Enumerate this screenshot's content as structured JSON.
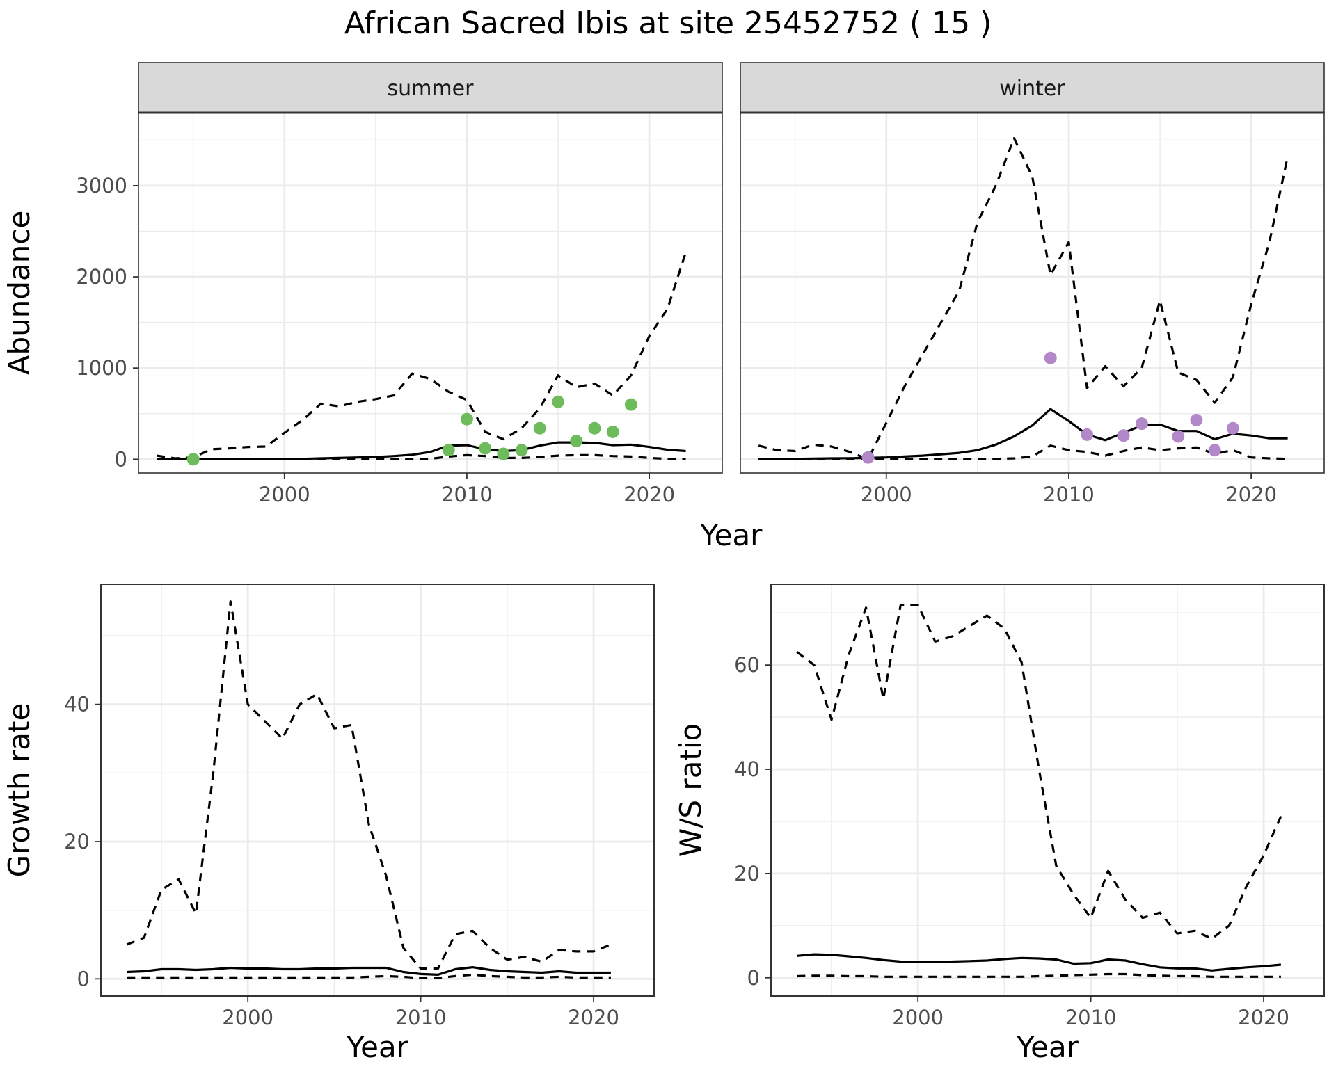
{
  "title": "African Sacred Ibis at site 25452752 ( 15 )",
  "colors": {
    "summer_points": "#6dbb5a",
    "winter_points": "#b388c8",
    "line": "#000000",
    "grid": "#ebebeb",
    "strip_fill": "#d9d9d9",
    "strip_border": "#333333"
  },
  "chart_data": [
    {
      "type": "line",
      "panel": "summer",
      "strip_label": "summer",
      "ylabel": "Abundance",
      "xlabel": "Year",
      "xlim": [
        1992,
        2024
      ],
      "ylim": [
        -150,
        3800
      ],
      "xticks": [
        2000,
        2010,
        2020
      ],
      "yticks": [
        0,
        1000,
        2000,
        3000
      ],
      "series": [
        {
          "name": "mean",
          "style": "solid",
          "x": [
            1993,
            1994,
            1995,
            1996,
            1997,
            1998,
            1999,
            2000,
            2001,
            2002,
            2003,
            2004,
            2005,
            2006,
            2007,
            2008,
            2009,
            2010,
            2011,
            2012,
            2013,
            2014,
            2015,
            2016,
            2017,
            2018,
            2019,
            2020,
            2021,
            2022
          ],
          "values": [
            0,
            0,
            0,
            0,
            0,
            0,
            0,
            0,
            5,
            10,
            15,
            20,
            25,
            35,
            50,
            80,
            150,
            155,
            110,
            90,
            100,
            150,
            185,
            185,
            180,
            155,
            160,
            135,
            105,
            90
          ]
        },
        {
          "name": "upper",
          "style": "dashed",
          "x": [
            1993,
            1994,
            1995,
            1996,
            1997,
            1998,
            1999,
            2000,
            2001,
            2002,
            2003,
            2004,
            2005,
            2006,
            2007,
            2008,
            2009,
            2010,
            2011,
            2012,
            2013,
            2014,
            2015,
            2016,
            2017,
            2018,
            2019,
            2020,
            2021,
            2022
          ],
          "values": [
            40,
            10,
            20,
            110,
            120,
            135,
            140,
            290,
            430,
            610,
            580,
            630,
            660,
            700,
            940,
            880,
            740,
            650,
            300,
            220,
            340,
            560,
            920,
            790,
            830,
            700,
            920,
            1350,
            1650,
            2270
          ]
        },
        {
          "name": "lower",
          "style": "dashed",
          "x": [
            1993,
            1994,
            1995,
            1996,
            1997,
            1998,
            1999,
            2000,
            2001,
            2002,
            2003,
            2004,
            2005,
            2006,
            2007,
            2008,
            2009,
            2010,
            2011,
            2012,
            2013,
            2014,
            2015,
            2016,
            2017,
            2018,
            2019,
            2020,
            2021,
            2022
          ],
          "values": [
            0,
            0,
            0,
            0,
            0,
            0,
            0,
            0,
            0,
            0,
            0,
            0,
            0,
            0,
            0,
            5,
            30,
            45,
            35,
            15,
            15,
            25,
            40,
            45,
            45,
            35,
            30,
            15,
            5,
            5
          ]
        },
        {
          "name": "observed",
          "style": "points",
          "x": [
            1995,
            2009,
            2010,
            2011,
            2012,
            2013,
            2014,
            2015,
            2016,
            2017,
            2018,
            2019
          ],
          "values": [
            0,
            100,
            440,
            120,
            60,
            100,
            340,
            630,
            200,
            340,
            300,
            600
          ]
        }
      ]
    },
    {
      "type": "line",
      "panel": "winter",
      "strip_label": "winter",
      "ylabel": "Abundance",
      "xlabel": "Year",
      "xlim": [
        1992,
        2024
      ],
      "ylim": [
        -150,
        3800
      ],
      "xticks": [
        2000,
        2010,
        2020
      ],
      "yticks": [
        0,
        1000,
        2000,
        3000
      ],
      "series": [
        {
          "name": "mean",
          "style": "solid",
          "x": [
            1993,
            1994,
            1995,
            1996,
            1997,
            1998,
            1999,
            2000,
            2001,
            2002,
            2003,
            2004,
            2005,
            2006,
            2007,
            2008,
            2009,
            2010,
            2011,
            2012,
            2013,
            2014,
            2015,
            2016,
            2017,
            2018,
            2019,
            2020,
            2021,
            2022
          ],
          "values": [
            5,
            5,
            5,
            8,
            10,
            12,
            15,
            20,
            30,
            40,
            55,
            70,
            100,
            160,
            250,
            370,
            550,
            420,
            270,
            210,
            290,
            370,
            380,
            310,
            310,
            220,
            280,
            260,
            230,
            230
          ]
        },
        {
          "name": "upper",
          "style": "dashed",
          "x": [
            1993,
            1994,
            1995,
            1996,
            1997,
            1998,
            1999,
            2000,
            2001,
            2002,
            2003,
            2004,
            2005,
            2006,
            2007,
            2008,
            2009,
            2010,
            2011,
            2012,
            2013,
            2014,
            2015,
            2016,
            2017,
            2018,
            2019,
            2020,
            2021,
            2022
          ],
          "values": [
            150,
            100,
            90,
            160,
            140,
            80,
            0,
            400,
            800,
            1150,
            1500,
            1850,
            2600,
            3000,
            3520,
            3100,
            2020,
            2380,
            780,
            1020,
            800,
            1000,
            1740,
            950,
            870,
            620,
            900,
            1700,
            2380,
            3320
          ]
        },
        {
          "name": "lower",
          "style": "dashed",
          "x": [
            1993,
            1994,
            1995,
            1996,
            1997,
            1998,
            1999,
            2000,
            2001,
            2002,
            2003,
            2004,
            2005,
            2006,
            2007,
            2008,
            2009,
            2010,
            2011,
            2012,
            2013,
            2014,
            2015,
            2016,
            2017,
            2018,
            2019,
            2020,
            2021,
            2022
          ],
          "values": [
            0,
            0,
            0,
            0,
            0,
            0,
            0,
            0,
            0,
            0,
            0,
            0,
            0,
            5,
            10,
            30,
            150,
            100,
            80,
            40,
            90,
            130,
            100,
            120,
            130,
            60,
            100,
            20,
            10,
            5
          ]
        },
        {
          "name": "observed",
          "style": "points",
          "x": [
            1999,
            2009,
            2011,
            2013,
            2014,
            2016,
            2017,
            2018,
            2019
          ],
          "values": [
            20,
            1110,
            270,
            260,
            390,
            250,
            430,
            100,
            340
          ]
        }
      ]
    },
    {
      "type": "line",
      "panel": "growth",
      "ylabel": "Growth rate",
      "xlabel": "Year",
      "xlim": [
        1991.5,
        2023.5
      ],
      "ylim": [
        -2.5,
        57.5
      ],
      "xticks": [
        2000,
        2010,
        2020
      ],
      "yticks": [
        0,
        20,
        40
      ],
      "series": [
        {
          "name": "mean",
          "style": "solid",
          "x": [
            1993,
            1994,
            1995,
            1996,
            1997,
            1998,
            1999,
            2000,
            2001,
            2002,
            2003,
            2004,
            2005,
            2006,
            2007,
            2008,
            2009,
            2010,
            2011,
            2012,
            2013,
            2014,
            2015,
            2016,
            2017,
            2018,
            2019,
            2020,
            2021
          ],
          "values": [
            1.0,
            1.1,
            1.4,
            1.4,
            1.3,
            1.4,
            1.6,
            1.5,
            1.5,
            1.4,
            1.4,
            1.5,
            1.5,
            1.6,
            1.6,
            1.6,
            1.0,
            0.7,
            0.6,
            1.4,
            1.7,
            1.3,
            1.1,
            1.0,
            0.9,
            1.1,
            0.9,
            0.9,
            0.9
          ]
        },
        {
          "name": "upper",
          "style": "dashed",
          "x": [
            1993,
            1994,
            1995,
            1996,
            1997,
            1998,
            1999,
            2000,
            2001,
            2002,
            2003,
            2004,
            2005,
            2006,
            2007,
            2008,
            2009,
            2010,
            2011,
            2012,
            2013,
            2014,
            2015,
            2016,
            2017,
            2018,
            2019,
            2020,
            2021
          ],
          "values": [
            5.0,
            6.0,
            13.0,
            14.5,
            9.5,
            30.0,
            55.0,
            40.0,
            37.5,
            35.0,
            40.0,
            41.5,
            36.5,
            37.0,
            22.5,
            15.0,
            4.5,
            1.5,
            1.5,
            6.5,
            7.0,
            4.5,
            2.8,
            3.2,
            2.5,
            4.2,
            4.0,
            4.0,
            5.0
          ]
        },
        {
          "name": "lower",
          "style": "dashed",
          "x": [
            1993,
            1994,
            1995,
            1996,
            1997,
            1998,
            1999,
            2000,
            2001,
            2002,
            2003,
            2004,
            2005,
            2006,
            2007,
            2008,
            2009,
            2010,
            2011,
            2012,
            2013,
            2014,
            2015,
            2016,
            2017,
            2018,
            2019,
            2020,
            2021
          ],
          "values": [
            0.2,
            0.2,
            0.2,
            0.2,
            0.2,
            0.2,
            0.2,
            0.2,
            0.2,
            0.2,
            0.2,
            0.2,
            0.2,
            0.2,
            0.3,
            0.4,
            0.3,
            0.1,
            0.1,
            0.4,
            0.6,
            0.4,
            0.3,
            0.2,
            0.2,
            0.3,
            0.2,
            0.2,
            0.2
          ]
        }
      ]
    },
    {
      "type": "line",
      "panel": "ratio",
      "ylabel": "W/S ratio",
      "xlabel": "Year",
      "xlim": [
        1991.5,
        2023.5
      ],
      "ylim": [
        -3.5,
        75.5
      ],
      "xticks": [
        2000,
        2010,
        2020
      ],
      "yticks": [
        0,
        20,
        40,
        60
      ],
      "series": [
        {
          "name": "mean",
          "style": "solid",
          "x": [
            1993,
            1994,
            1995,
            1996,
            1997,
            1998,
            1999,
            2000,
            2001,
            2002,
            2003,
            2004,
            2005,
            2006,
            2007,
            2008,
            2009,
            2010,
            2011,
            2012,
            2013,
            2014,
            2015,
            2016,
            2017,
            2018,
            2019,
            2020,
            2021
          ],
          "values": [
            4.2,
            4.5,
            4.4,
            4.1,
            3.8,
            3.4,
            3.1,
            3.0,
            3.0,
            3.1,
            3.2,
            3.3,
            3.6,
            3.8,
            3.7,
            3.5,
            2.7,
            2.8,
            3.5,
            3.3,
            2.6,
            2.0,
            1.8,
            1.8,
            1.4,
            1.7,
            2.0,
            2.2,
            2.5
          ]
        },
        {
          "name": "upper",
          "style": "dashed",
          "x": [
            1993,
            1994,
            1995,
            1996,
            1997,
            1998,
            1999,
            2000,
            2001,
            2002,
            2003,
            2004,
            2005,
            2006,
            2007,
            2008,
            2009,
            2010,
            2011,
            2012,
            2013,
            2014,
            2015,
            2016,
            2017,
            2018,
            2019,
            2020,
            2021
          ],
          "values": [
            62.5,
            60.0,
            49.5,
            62.0,
            71.0,
            53.5,
            71.5,
            71.5,
            64.5,
            65.5,
            67.5,
            69.5,
            67.0,
            60.5,
            40.0,
            21.5,
            16.0,
            11.5,
            20.5,
            15.0,
            11.5,
            12.5,
            8.5,
            9.0,
            7.5,
            10.0,
            17.5,
            23.5,
            31.0
          ]
        },
        {
          "name": "lower",
          "style": "dashed",
          "x": [
            1993,
            1994,
            1995,
            1996,
            1997,
            1998,
            1999,
            2000,
            2001,
            2002,
            2003,
            2004,
            2005,
            2006,
            2007,
            2008,
            2009,
            2010,
            2011,
            2012,
            2013,
            2014,
            2015,
            2016,
            2017,
            2018,
            2019,
            2020,
            2021
          ],
          "values": [
            0.3,
            0.4,
            0.4,
            0.3,
            0.3,
            0.2,
            0.2,
            0.2,
            0.2,
            0.2,
            0.2,
            0.2,
            0.2,
            0.2,
            0.3,
            0.4,
            0.5,
            0.6,
            0.7,
            0.7,
            0.5,
            0.4,
            0.3,
            0.3,
            0.2,
            0.2,
            0.2,
            0.2,
            0.2
          ]
        }
      ]
    }
  ]
}
